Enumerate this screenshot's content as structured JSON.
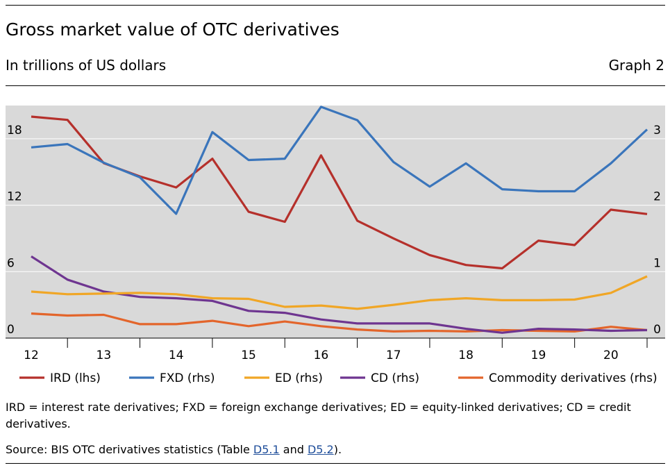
{
  "header": {
    "title": "Gross market value of OTC derivatives",
    "subtitle": "In trillions of US dollars",
    "graph_no": "Graph 2"
  },
  "footer": {
    "note": "IRD = interest rate derivatives; FXD = foreign exchange derivatives; ED = equity-linked derivatives; CD = credit derivatives.",
    "source_prefix": "Source: BIS OTC derivatives statistics (Table ",
    "link1": "D5.1",
    "source_and": " and ",
    "link2": "D5.2",
    "source_suffix": ")."
  },
  "chart_data": {
    "type": "line",
    "title": "Gross market value of OTC derivatives",
    "subtitle": "In trillions of US dollars",
    "x": [
      2012.0,
      2012.5,
      2013.0,
      2013.5,
      2014.0,
      2014.5,
      2015.0,
      2015.5,
      2016.0,
      2016.5,
      2017.0,
      2017.5,
      2018.0,
      2018.5,
      2019.0,
      2019.5,
      2020.0,
      2020.5
    ],
    "x_tick_labels": [
      "12",
      "13",
      "14",
      "15",
      "16",
      "17",
      "18",
      "19",
      "20"
    ],
    "y_left": {
      "ylim": [
        0,
        21
      ],
      "ticks": [
        0,
        6,
        12,
        18
      ],
      "tick_labels": [
        "0",
        "6",
        "12",
        "18"
      ]
    },
    "y_right": {
      "ylim": [
        0,
        3.5
      ],
      "ticks": [
        0,
        1,
        2,
        3
      ],
      "tick_labels": [
        "0",
        "1",
        "2",
        "3"
      ]
    },
    "grid": true,
    "legend_position": "bottom",
    "series": [
      {
        "name": "IRD (lhs)",
        "axis": "left",
        "color": "#b5302b",
        "values": [
          20.0,
          19.7,
          15.8,
          14.6,
          13.6,
          16.2,
          11.4,
          10.5,
          16.5,
          10.6,
          9.0,
          7.5,
          6.6,
          6.3,
          8.8,
          8.4,
          11.6,
          11.2
        ]
      },
      {
        "name": "FXD (rhs)",
        "axis": "right",
        "color": "#3a75bb",
        "values": [
          2.87,
          2.92,
          2.64,
          2.42,
          1.87,
          3.1,
          2.68,
          2.7,
          3.48,
          3.28,
          2.65,
          2.28,
          2.63,
          2.24,
          2.21,
          2.21,
          2.63,
          3.14
        ]
      },
      {
        "name": "ED (rhs)",
        "axis": "right",
        "color": "#f0a626",
        "values": [
          0.7,
          0.66,
          0.67,
          0.68,
          0.66,
          0.6,
          0.59,
          0.47,
          0.49,
          0.44,
          0.5,
          0.57,
          0.6,
          0.57,
          0.57,
          0.58,
          0.68,
          0.93
        ]
      },
      {
        "name": "CD (rhs)",
        "axis": "right",
        "color": "#6e3590",
        "values": [
          1.23,
          0.88,
          0.7,
          0.62,
          0.6,
          0.56,
          0.41,
          0.38,
          0.28,
          0.22,
          0.22,
          0.22,
          0.14,
          0.08,
          0.14,
          0.13,
          0.11,
          0.12
        ]
      },
      {
        "name": "Commodity derivatives (rhs)",
        "axis": "right",
        "color": "#e3652b",
        "values": [
          0.37,
          0.34,
          0.35,
          0.21,
          0.21,
          0.26,
          0.18,
          0.25,
          0.18,
          0.13,
          0.1,
          0.11,
          0.1,
          0.12,
          0.11,
          0.1,
          0.17,
          0.12
        ]
      }
    ]
  }
}
